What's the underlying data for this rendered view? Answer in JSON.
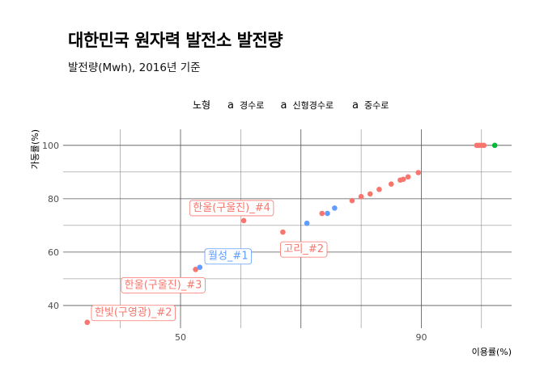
{
  "chart_data": {
    "type": "scatter",
    "title": "대한민국 원자력 발전소 발전량",
    "subtitle": "발전량(Mwh), 2016년 기준",
    "xlabel": "이용률(%)",
    "ylabel": "가동률(%)",
    "xlim": [
      30.5,
      105
    ],
    "ylim": [
      31.5,
      106
    ],
    "x_ticks": [
      50,
      90
    ],
    "y_ticks": [
      40,
      60,
      80,
      100
    ],
    "grid": true,
    "legend": {
      "title": "노형",
      "position": "top",
      "entries": [
        {
          "key": "경수로",
          "label": "경수로",
          "color": "#F8766D"
        },
        {
          "key": "신형경수로",
          "label": "신형경수로",
          "color": "#00BA38"
        },
        {
          "key": "중수로",
          "label": "중수로",
          "color": "#619CFF"
        }
      ]
    },
    "points": [
      {
        "x": 34.5,
        "y": 33.7,
        "type": "경수로"
      },
      {
        "x": 52.5,
        "y": 53.5,
        "type": "경수로"
      },
      {
        "x": 53.2,
        "y": 54.3,
        "type": "중수로"
      },
      {
        "x": 60.5,
        "y": 71.8,
        "type": "경수로"
      },
      {
        "x": 67.0,
        "y": 67.5,
        "type": "경수로"
      },
      {
        "x": 71.0,
        "y": 70.8,
        "type": "중수로"
      },
      {
        "x": 73.5,
        "y": 74.5,
        "type": "경수로"
      },
      {
        "x": 74.4,
        "y": 74.5,
        "type": "중수로"
      },
      {
        "x": 75.6,
        "y": 76.5,
        "type": "중수로"
      },
      {
        "x": 78.5,
        "y": 79.3,
        "type": "경수로"
      },
      {
        "x": 80.0,
        "y": 80.8,
        "type": "경수로"
      },
      {
        "x": 81.5,
        "y": 81.8,
        "type": "경수로"
      },
      {
        "x": 83.0,
        "y": 83.5,
        "type": "경수로"
      },
      {
        "x": 85.0,
        "y": 85.5,
        "type": "경수로"
      },
      {
        "x": 86.5,
        "y": 87.0,
        "type": "경수로"
      },
      {
        "x": 87.0,
        "y": 87.3,
        "type": "경수로"
      },
      {
        "x": 87.8,
        "y": 88.2,
        "type": "경수로"
      },
      {
        "x": 89.5,
        "y": 89.8,
        "type": "경수로"
      },
      {
        "x": 99.2,
        "y": 100.0,
        "type": "경수로"
      },
      {
        "x": 99.6,
        "y": 100.0,
        "type": "경수로"
      },
      {
        "x": 100.0,
        "y": 100.0,
        "type": "경수로"
      },
      {
        "x": 100.4,
        "y": 100.0,
        "type": "경수로"
      },
      {
        "x": 102.2,
        "y": 100.0,
        "type": "신형경수로"
      }
    ],
    "labels": [
      {
        "text": "한울(구울진)_#4",
        "x": 60.5,
        "y": 71.8,
        "type": "경수로"
      },
      {
        "text": "고리_#2",
        "x": 67.0,
        "y": 67.5,
        "type": "경수로"
      },
      {
        "text": "월성_#1",
        "x": 53.2,
        "y": 54.3,
        "type": "중수로"
      },
      {
        "text": "한울(구울진)_#3",
        "x": 52.5,
        "y": 53.5,
        "type": "경수로"
      },
      {
        "text": "한빛(구영광)_#2",
        "x": 34.5,
        "y": 33.7,
        "type": "경수로"
      }
    ]
  }
}
